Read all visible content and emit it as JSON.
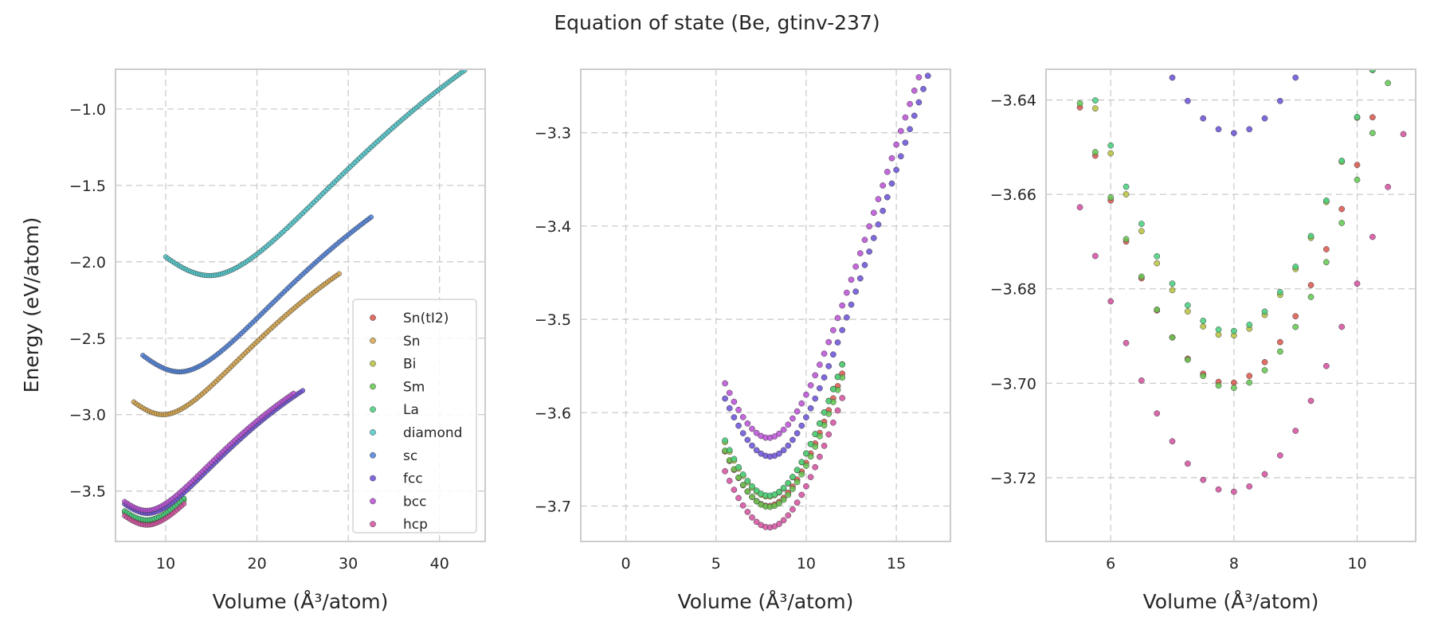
{
  "title": "Equation of state (Be, gtinv-237)",
  "xlabel": "Volume (Å³/atom)",
  "ylabel": "Energy (eV/atom)",
  "legend_position": "lower-right",
  "legend_entries": [
    "Sn(tI2)",
    "Sn",
    "Bi",
    "Sm",
    "La",
    "diamond",
    "sc",
    "fcc",
    "bcc",
    "hcp"
  ],
  "chart_data": {
    "type": "scatter",
    "grid": true,
    "panels": [
      {
        "xlim": [
          4.5,
          45
        ],
        "ylim": [
          -3.83,
          -0.74
        ],
        "xticks": [
          10,
          20,
          30,
          40
        ],
        "yticks": [
          -1.0,
          -1.5,
          -2.0,
          -2.5,
          -3.0,
          -3.5
        ],
        "legend": true
      },
      {
        "xlim": [
          -2.5,
          18
        ],
        "ylim": [
          -3.738,
          -3.232
        ],
        "xticks": [
          0,
          5,
          10,
          15
        ],
        "yticks": [
          -3.3,
          -3.4,
          -3.5,
          -3.6,
          -3.7
        ],
        "legend": false
      },
      {
        "xlim": [
          4.95,
          10.95
        ],
        "ylim": [
          -3.7335,
          -3.6335
        ],
        "xticks": [
          6,
          8,
          10
        ],
        "yticks": [
          -3.64,
          -3.66,
          -3.68,
          -3.7,
          -3.72
        ],
        "legend": false
      }
    ],
    "series": [
      {
        "name": "Sn(tI2)",
        "color": "#d9564b",
        "curve": {
          "V0": 7.9,
          "E0": -3.7,
          "B": 0.105,
          "Vmin": 5.5,
          "Vmax": 12.0
        }
      },
      {
        "name": "Sn",
        "color": "#d2a24a",
        "curve": {
          "V0": 9.7,
          "E0": -3.0,
          "B": 0.105,
          "Vmin": 6.5,
          "Vmax": 29.0
        }
      },
      {
        "name": "Bi",
        "color": "#b7c23d",
        "curve": {
          "V0": 7.9,
          "E0": -3.69,
          "B": 0.105,
          "Vmin": 5.5,
          "Vmax": 12.0
        }
      },
      {
        "name": "Sm",
        "color": "#62c74f",
        "curve": {
          "V0": 7.95,
          "E0": -3.701,
          "B": 0.105,
          "Vmin": 5.5,
          "Vmax": 12.0
        }
      },
      {
        "name": "La",
        "color": "#45cf7e",
        "curve": {
          "V0": 7.92,
          "E0": -3.689,
          "B": 0.105,
          "Vmin": 5.5,
          "Vmax": 12.0
        }
      },
      {
        "name": "diamond",
        "color": "#4fc6c9",
        "curve": {
          "V0": 14.8,
          "E0": -2.09,
          "B": 0.105,
          "Vmin": 10.0,
          "Vmax": 44.0
        }
      },
      {
        "name": "sc",
        "color": "#4e7fd8",
        "curve": {
          "V0": 11.5,
          "E0": -2.72,
          "B": 0.105,
          "Vmin": 7.5,
          "Vmax": 32.5
        }
      },
      {
        "name": "fcc",
        "color": "#6a4fd6",
        "curve": {
          "V0": 8.0,
          "E0": -3.647,
          "B": 0.105,
          "Vmin": 5.5,
          "Vmax": 25.0
        }
      },
      {
        "name": "bcc",
        "color": "#b94fd6",
        "curve": {
          "V0": 7.9,
          "E0": -3.627,
          "B": 0.105,
          "Vmin": 5.5,
          "Vmax": 24.0
        }
      },
      {
        "name": "hcp",
        "color": "#d24f9e",
        "curve": {
          "V0": 7.95,
          "E0": -3.723,
          "B": 0.105,
          "Vmin": 5.5,
          "Vmax": 12.0
        }
      }
    ]
  }
}
